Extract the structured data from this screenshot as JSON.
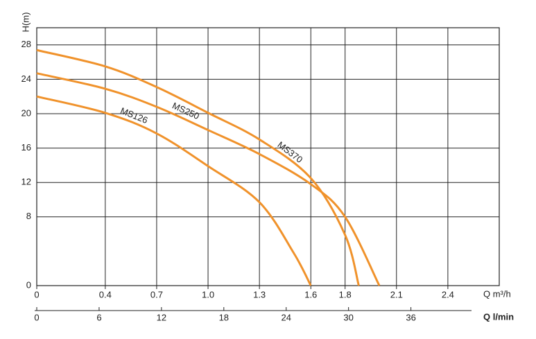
{
  "chart_data": {
    "type": "line",
    "y_label": "H(m)",
    "x_label": "Q m³/h",
    "x2_label": "Q l/min",
    "xlim": [
      0,
      2.7
    ],
    "xticks": [
      0,
      0.4,
      0.7,
      {
        "value": 1,
        "label": "1.0"
      },
      1.3,
      1.6,
      1.8,
      2.1,
      2.4
    ],
    "x2lim": [
      0,
      44.5
    ],
    "x2ticks": [
      0,
      6,
      12,
      18,
      24,
      30,
      36
    ],
    "ylim": [
      0,
      30
    ],
    "yticks": [
      0,
      8,
      12,
      16,
      20,
      24,
      28
    ],
    "grid": true,
    "series": [
      {
        "name": "MS126",
        "color": "#f0922b",
        "x": [
          0,
          0.4,
          0.7,
          1,
          1.3,
          1.5,
          1.6
        ],
        "values": [
          22,
          20.1,
          17.7,
          13.9,
          9.7,
          3.8,
          0
        ]
      },
      {
        "name": "MS250",
        "color": "#f0922b",
        "x": [
          0,
          0.4,
          0.7,
          1,
          1.3,
          1.6,
          1.8,
          2.0
        ],
        "values": [
          24.7,
          22.9,
          20.8,
          18.1,
          15.3,
          11.8,
          8.0,
          0
        ]
      },
      {
        "name": "MS370",
        "color": "#f0922b",
        "x": [
          0,
          0.4,
          0.7,
          1,
          1.3,
          1.6,
          1.8,
          1.88
        ],
        "values": [
          27.4,
          25.5,
          23.1,
          20.1,
          17.0,
          12.5,
          5.9,
          0
        ]
      }
    ]
  }
}
